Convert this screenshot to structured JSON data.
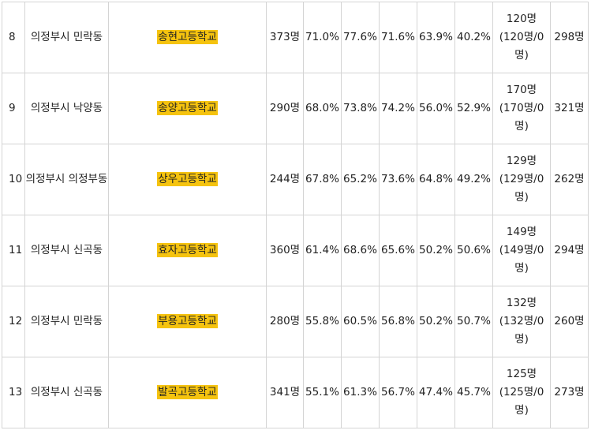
{
  "rows": [
    {
      "rank": "8",
      "region": "의정부시 민락동",
      "school": "송현고등학교",
      "students": "373명",
      "r1": "71.0%",
      "r2": "77.6%",
      "r3": "71.6%",
      "r4": "63.9%",
      "r5": "40.2%",
      "grads_a": "120명",
      "grads_b": "(120명/0",
      "grads_c": "명)",
      "last": "298명"
    },
    {
      "rank": "9",
      "region": "의정부시 낙양동",
      "school": "송양고등학교",
      "students": "290명",
      "r1": "68.0%",
      "r2": "73.8%",
      "r3": "74.2%",
      "r4": "56.0%",
      "r5": "52.9%",
      "grads_a": "170명",
      "grads_b": "(170명/0",
      "grads_c": "명)",
      "last": "321명"
    },
    {
      "rank": "10",
      "region": "의정부시 의정부동",
      "school": "상우고등학교",
      "students": "244명",
      "r1": "67.8%",
      "r2": "65.2%",
      "r3": "73.6%",
      "r4": "64.8%",
      "r5": "49.2%",
      "grads_a": "129명",
      "grads_b": "(129명/0",
      "grads_c": "명)",
      "last": "262명"
    },
    {
      "rank": "11",
      "region": "의정부시 신곡동",
      "school": "효자고등학교",
      "students": "360명",
      "r1": "61.4%",
      "r2": "68.6%",
      "r3": "65.6%",
      "r4": "50.2%",
      "r5": "50.6%",
      "grads_a": "149명",
      "grads_b": "(149명/0",
      "grads_c": "명)",
      "last": "294명"
    },
    {
      "rank": "12",
      "region": "의정부시 민락동",
      "school": "부용고등학교",
      "students": "280명",
      "r1": "55.8%",
      "r2": "60.5%",
      "r3": "56.8%",
      "r4": "50.2%",
      "r5": "50.7%",
      "grads_a": "132명",
      "grads_b": "(132명/0",
      "grads_c": "명)",
      "last": "260명"
    },
    {
      "rank": "13",
      "region": "의정부시 신곡동",
      "school": "발곡고등학교",
      "students": "341명",
      "r1": "55.1%",
      "r2": "61.3%",
      "r3": "56.7%",
      "r4": "47.4%",
      "r5": "45.7%",
      "grads_a": "125명",
      "grads_b": "(125명/0",
      "grads_c": "명)",
      "last": "273명"
    }
  ],
  "highlight_color": "#f5c30f"
}
